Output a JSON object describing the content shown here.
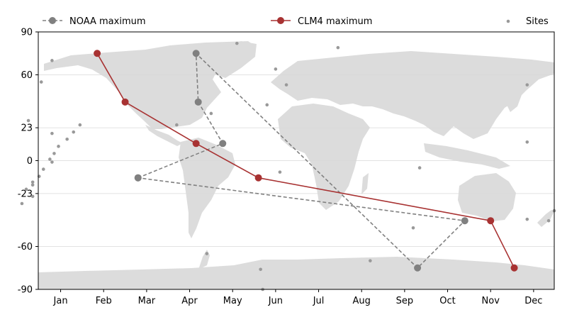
{
  "legend": {
    "noaa_label": "NOAA maximum",
    "clm4_label": "CLM4 maximum",
    "sites_label": "Sites"
  },
  "colors": {
    "noaa": "#808080",
    "clm4": "#a83232",
    "land": "#dcdcdc",
    "grid": "#d9d9d9",
    "sites": "#999999"
  },
  "chart_data": {
    "type": "scatter",
    "x_axis": {
      "ticks": [
        "Jan",
        "Feb",
        "Mar",
        "Apr",
        "May",
        "Jun",
        "Jul",
        "Aug",
        "Sep",
        "Oct",
        "Nov",
        "Dec"
      ],
      "range_months": [
        0.48,
        12.48
      ]
    },
    "y_axis": {
      "ticks": [
        "90",
        "60",
        "23",
        "0",
        "-23",
        "-60",
        "-90"
      ],
      "tick_values": [
        90,
        60,
        23,
        0,
        -23,
        -60,
        -90
      ],
      "range": [
        -90,
        90
      ]
    },
    "grid": "horizontal",
    "legend_position": "top",
    "series": [
      {
        "name": "NOAA maximum",
        "style": "dashed",
        "points": [
          {
            "month": 2.8,
            "lat": -12
          },
          {
            "month": 4.77,
            "lat": 12
          },
          {
            "month": 4.2,
            "lat": 41
          },
          {
            "month": 4.15,
            "lat": 75
          },
          {
            "month": 9.3,
            "lat": -75
          },
          {
            "month": 10.4,
            "lat": -42
          },
          {
            "month": 2.8,
            "lat": -12
          }
        ]
      },
      {
        "name": "CLM4 maximum",
        "style": "solid",
        "points": [
          {
            "month": 1.85,
            "lat": 75
          },
          {
            "month": 2.5,
            "lat": 41
          },
          {
            "month": 4.15,
            "lat": 12
          },
          {
            "month": 5.6,
            "lat": -12
          },
          {
            "month": 11.0,
            "lat": -42
          },
          {
            "month": 11.55,
            "lat": -75
          }
        ]
      },
      {
        "name": "Sites",
        "style": "dots",
        "points": [
          {
            "month": 0.8,
            "lat": 70
          },
          {
            "month": 0.55,
            "lat": 55
          },
          {
            "month": 0.25,
            "lat": 28
          },
          {
            "month": 0.8,
            "lat": 19
          },
          {
            "month": 1.3,
            "lat": 20
          },
          {
            "month": 1.45,
            "lat": 25
          },
          {
            "month": 1.15,
            "lat": 15
          },
          {
            "month": 0.95,
            "lat": 10
          },
          {
            "month": 0.85,
            "lat": 5
          },
          {
            "month": 0.75,
            "lat": 1
          },
          {
            "month": 0.8,
            "lat": -1
          },
          {
            "month": 0.6,
            "lat": -6
          },
          {
            "month": 0.5,
            "lat": -11
          },
          {
            "month": 0.35,
            "lat": -15
          },
          {
            "month": 0.35,
            "lat": -17
          },
          {
            "month": 0.2,
            "lat": -20
          },
          {
            "month": 0.35,
            "lat": -25
          },
          {
            "month": 0.1,
            "lat": -30
          },
          {
            "month": 3.7,
            "lat": 25
          },
          {
            "month": 4.5,
            "lat": 33
          },
          {
            "month": 5.1,
            "lat": 82
          },
          {
            "month": 6.0,
            "lat": 64
          },
          {
            "month": 6.25,
            "lat": 53
          },
          {
            "month": 5.8,
            "lat": 39
          },
          {
            "month": 6.1,
            "lat": -8
          },
          {
            "month": 7.45,
            "lat": 79
          },
          {
            "month": 9.35,
            "lat": -5
          },
          {
            "month": 9.2,
            "lat": -47
          },
          {
            "month": 11.85,
            "lat": 53
          },
          {
            "month": 11.85,
            "lat": 13
          },
          {
            "month": 11.85,
            "lat": -41
          },
          {
            "month": 12.35,
            "lat": -42
          },
          {
            "month": 12.48,
            "lat": -35
          },
          {
            "month": 4.4,
            "lat": -65
          },
          {
            "month": 5.65,
            "lat": -76
          },
          {
            "month": 8.2,
            "lat": -70
          },
          {
            "month": 5.7,
            "lat": -90
          }
        ]
      }
    ]
  }
}
